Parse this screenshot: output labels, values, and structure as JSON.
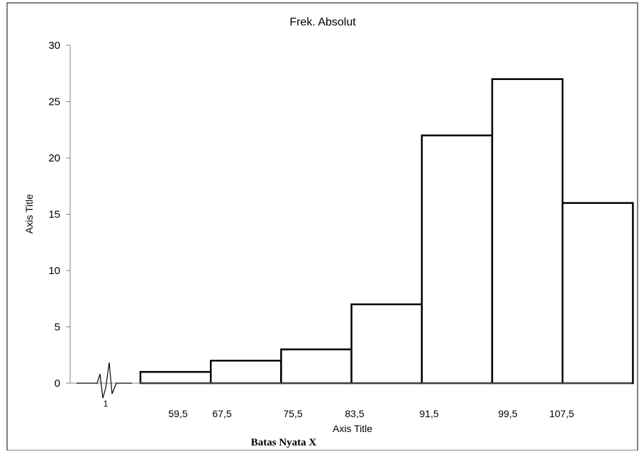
{
  "chart_data": {
    "type": "bar",
    "title": "Frek. Absolut",
    "ylabel": "Axis Title",
    "xlabel": "Axis Title",
    "xlabel_secondary": "Batas Nyata X",
    "axis_break_label": "1",
    "ylim": [
      0,
      30
    ],
    "y_ticks": [
      0,
      5,
      10,
      15,
      20,
      25,
      30
    ],
    "x_ticks": [
      "59,5",
      "67,5",
      "75,5",
      "83,5",
      "91,5",
      "99,5",
      "107,5"
    ],
    "values": [
      1,
      2,
      3,
      7,
      22,
      27,
      16
    ],
    "grid": false,
    "legend": "none",
    "colors": {
      "bar_fill": "#ffffff",
      "bar_stroke": "#000000",
      "axis": "#868686",
      "border": "#000000"
    }
  }
}
